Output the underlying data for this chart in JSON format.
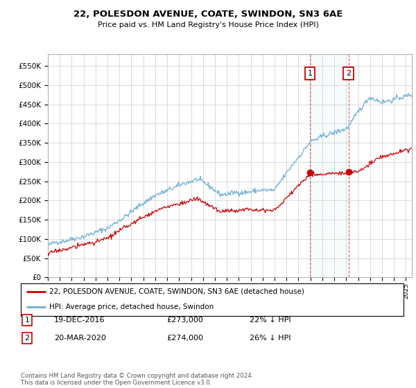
{
  "title": "22, POLESDON AVENUE, COATE, SWINDON, SN3 6AE",
  "subtitle": "Price paid vs. HM Land Registry's House Price Index (HPI)",
  "ylim": [
    0,
    580000
  ],
  "xlim_start": 1995.0,
  "xlim_end": 2025.5,
  "hpi_color": "#6baed6",
  "price_color": "#CC0000",
  "vline1_x": 2016.96,
  "vline2_x": 2020.21,
  "marker1_x": 2016.96,
  "marker1_y": 273000,
  "marker2_x": 2020.21,
  "marker2_y": 274000,
  "legend_label_price": "22, POLESDON AVENUE, COATE, SWINDON, SN3 6AE (detached house)",
  "legend_label_hpi": "HPI: Average price, detached house, Swindon",
  "annotation1_num": "1",
  "annotation1_date": "19-DEC-2016",
  "annotation1_price": "£273,000",
  "annotation1_hpi": "22% ↓ HPI",
  "annotation2_num": "2",
  "annotation2_date": "20-MAR-2020",
  "annotation2_price": "£274,000",
  "annotation2_hpi": "26% ↓ HPI",
  "footer": "Contains HM Land Registry data © Crown copyright and database right 2024.\nThis data is licensed under the Open Government Licence v3.0.",
  "background_color": "#ffffff",
  "grid_color": "#cccccc"
}
